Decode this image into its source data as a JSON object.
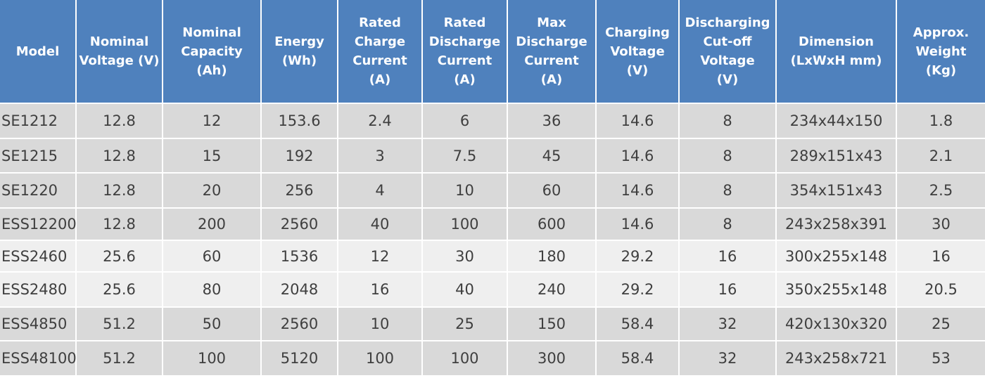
{
  "headers": [
    "Model",
    "Nominal\nVoltage (V)",
    "Nominal\nCapacity (Ah)",
    "Energy\n(Wh)",
    "Rated\nCharge\nCurrent\n(A)",
    "Rated\nDischarge\nCurrent\n(A)",
    "Max\nDischarge\nCurrent\n(A)",
    "Charging\nVoltage\n(V)",
    "Discharging\nCut-off\nVoltage\n(V)",
    "Dimension\n(LxWxH mm)",
    "Approx.\nWeight (Kg)"
  ],
  "rows": [
    [
      "SE1212",
      "12.8",
      "12",
      "153.6",
      "2.4",
      "6",
      "36",
      "14.6",
      "8",
      "234x44x150",
      "1.8"
    ],
    [
      "SE1215",
      "12.8",
      "15",
      "192",
      "3",
      "7.5",
      "45",
      "14.6",
      "8",
      "289x151x43",
      "2.1"
    ],
    [
      "SE1220",
      "12.8",
      "20",
      "256",
      "4",
      "10",
      "60",
      "14.6",
      "8",
      "354x151x43",
      "2.5"
    ],
    [
      "ESS12200",
      "12.8",
      "200",
      "2560",
      "40",
      "100",
      "600",
      "14.6",
      "8",
      "243x258x391",
      "30"
    ],
    [
      "ESS2460",
      "25.6",
      "60",
      "1536",
      "12",
      "30",
      "180",
      "29.2",
      "16",
      "300x255x148",
      "16"
    ],
    [
      "ESS2480",
      "25.6",
      "80",
      "2048",
      "16",
      "40",
      "240",
      "29.2",
      "16",
      "350x255x148",
      "20.5"
    ],
    [
      "ESS4850",
      "51.2",
      "50",
      "2560",
      "10",
      "25",
      "150",
      "58.4",
      "32",
      "420x130x320",
      "25"
    ],
    [
      "ESS48100",
      "51.2",
      "100",
      "5120",
      "100",
      "100",
      "300",
      "58.4",
      "32",
      "243x258x721",
      "53"
    ]
  ],
  "colors": {
    "header_bg": "#4f81bd",
    "row_dark": "#d9d9d9",
    "row_light": "#efefef",
    "text": "#3f3f3f"
  }
}
